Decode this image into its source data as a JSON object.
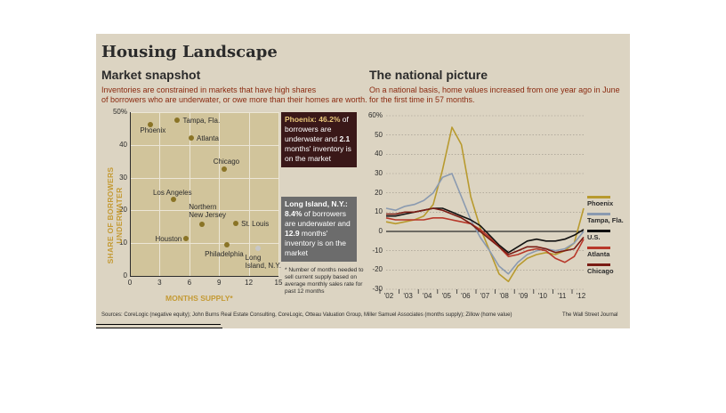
{
  "title": "Housing Landscape",
  "left": {
    "heading": "Market snapshot",
    "deck_line1": "Inventories are constrained in markets that have high shares",
    "deck_line2": "of borrowers who are underwater, or owe more than their homes are worth.",
    "y_axis_label": "SHARE OF BORROWERS UNDERWATER",
    "x_axis_label": "MONTHS SUPPLY*",
    "footnote": "* Number of months needed to sell current supply based on average monthly sales rate for past 12 months",
    "callout_phoenix": {
      "city": "Phoenix:",
      "pct": "46.2%",
      "t1": " of borrowers are underwater and ",
      "num": "2.1",
      "t2": " months' inventory is on the market"
    },
    "callout_longisland": {
      "city": "Long Island, N.Y.:",
      "pct": "8.4%",
      "t1": " of borrowers are underwater and ",
      "num": "12.9",
      "t2": " months' inventory is on the market"
    }
  },
  "right": {
    "heading": "The national picture",
    "deck_line1": "On a national basis, home values increased from one year ago in June",
    "deck_line2": "for the first time in 57 months."
  },
  "sources": "Sources: CoreLogic (negative equity); John Burns Real Estate Consulting, CoreLogic, Otteau Valuation Group, Miller Samuel Associates (months supply); Zillow (home value)",
  "credit": "The Wall Street Journal",
  "colors": {
    "gold": "#8a7426",
    "highlight": "#c8c8c8",
    "phoenix_box": "#3a1818",
    "longisland_box": "#6c6c6c"
  },
  "chart_data": [
    {
      "type": "scatter",
      "xlabel": "MONTHS SUPPLY*",
      "ylabel": "SHARE OF BORROWERS UNDERWATER",
      "x_ticks": [
        "0",
        "3",
        "6",
        "9",
        "12",
        "15"
      ],
      "y_ticks": [
        "0",
        "10",
        "20",
        "30",
        "40",
        "50%"
      ],
      "xlim": [
        0,
        15
      ],
      "ylim": [
        0,
        50
      ],
      "grid": true,
      "points": [
        {
          "label": "Phoenix",
          "x": 2.1,
          "y": 46.2
        },
        {
          "label": "Tampa, Fla.",
          "x": 4.8,
          "y": 47.5
        },
        {
          "label": "Atlanta",
          "x": 6.2,
          "y": 42.0
        },
        {
          "label": "Chicago",
          "x": 9.5,
          "y": 32.5
        },
        {
          "label": "Los Angeles",
          "x": 4.4,
          "y": 23.5
        },
        {
          "label": "Northern New Jersey",
          "x": 7.3,
          "y": 15.8
        },
        {
          "label": "St. Louis",
          "x": 10.7,
          "y": 16.0
        },
        {
          "label": "Houston",
          "x": 5.7,
          "y": 11.5
        },
        {
          "label": "Philadelphia",
          "x": 9.8,
          "y": 9.5
        },
        {
          "label": "Long Island, N.Y.",
          "x": 12.9,
          "y": 8.4
        }
      ]
    },
    {
      "type": "line",
      "y_ticks": [
        "60%",
        "50",
        "40",
        "30",
        "20",
        "10",
        "0",
        "-10",
        "-20",
        "-30"
      ],
      "ylim": [
        -30,
        60
      ],
      "x_ticks": [
        "'02",
        "'03",
        "'04",
        "'05",
        "'06",
        "'07",
        "'08",
        "'09",
        "'10",
        "'11",
        "'12"
      ],
      "grid": true,
      "legend_placement": "right",
      "series": [
        {
          "name": "Phoenix",
          "color": "#b89a2e",
          "values": [
            5,
            4,
            5,
            6,
            8,
            14,
            32,
            54,
            45,
            18,
            2,
            -10,
            -22,
            -26,
            -18,
            -14,
            -12,
            -11,
            -12,
            -10,
            -6,
            12
          ]
        },
        {
          "name": "Tampa, Fla.",
          "color": "#8a9ab0",
          "values": [
            12,
            11,
            13,
            14,
            16,
            20,
            28,
            30,
            18,
            6,
            -3,
            -10,
            -18,
            -22,
            -16,
            -12,
            -10,
            -9,
            -10,
            -9,
            -6,
            0
          ]
        },
        {
          "name": "U.S.",
          "color": "#111111",
          "values": [
            8,
            8,
            9,
            10,
            11,
            12,
            12,
            10,
            8,
            6,
            3,
            -2,
            -7,
            -11,
            -8,
            -5,
            -4,
            -5,
            -5,
            -4,
            -2,
            1
          ]
        },
        {
          "name": "Atlanta",
          "color": "#b8382a",
          "values": [
            7,
            6,
            6,
            6,
            6,
            7,
            7,
            6,
            5,
            4,
            1,
            -3,
            -8,
            -13,
            -12,
            -10,
            -9,
            -10,
            -14,
            -16,
            -13,
            -4
          ]
        },
        {
          "name": "Chicago",
          "color": "#7a1c14",
          "values": [
            9,
            9,
            10,
            10,
            11,
            12,
            11,
            9,
            7,
            4,
            0,
            -4,
            -8,
            -12,
            -10,
            -8,
            -8,
            -9,
            -11,
            -10,
            -9,
            -3
          ]
        }
      ]
    }
  ]
}
